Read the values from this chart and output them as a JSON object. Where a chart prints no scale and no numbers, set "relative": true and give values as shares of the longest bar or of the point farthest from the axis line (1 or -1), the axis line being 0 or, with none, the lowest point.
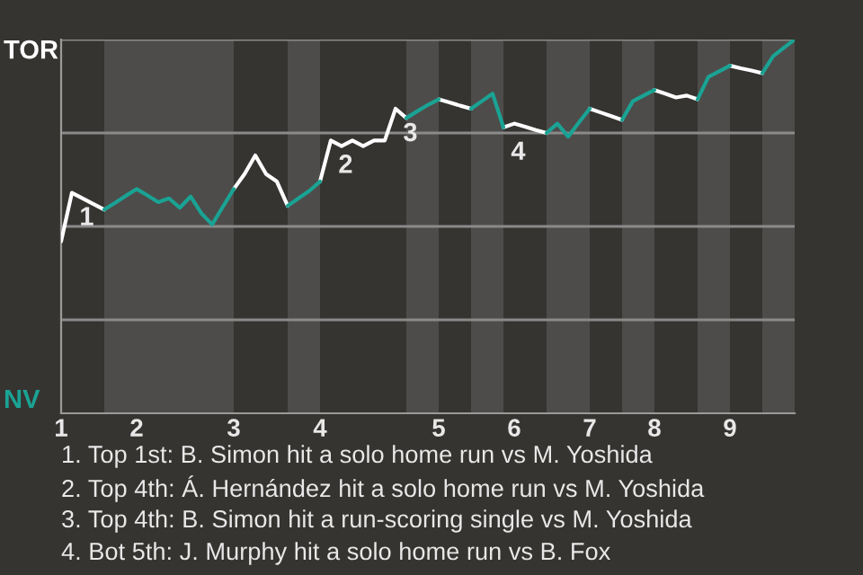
{
  "chart_data": {
    "type": "line",
    "relative": true,
    "categories": [
      "1",
      null,
      null,
      null,
      null,
      null,
      null,
      "2",
      null,
      null,
      null,
      null,
      null,
      null,
      null,
      null,
      "3",
      null,
      null,
      null,
      null,
      null,
      null,
      null,
      "4",
      null,
      null,
      null,
      null,
      null,
      null,
      null,
      null,
      null,
      null,
      "5",
      null,
      null,
      null,
      null,
      null,
      null,
      "6",
      null,
      null,
      null,
      null,
      null,
      null,
      "7",
      null,
      null,
      null,
      null,
      null,
      "8",
      null,
      null,
      null,
      null,
      null,
      null,
      "9",
      null,
      null,
      null,
      null,
      null,
      null
    ],
    "series": [
      {
        "color": "#ffffff",
        "values": [
          0.46,
          0.59,
          0.575,
          0.56,
          0.545,
          null,
          null,
          null,
          null,
          null,
          null,
          null,
          null,
          null,
          null,
          null,
          0.6,
          0.64,
          0.69,
          0.64,
          0.62,
          0.555,
          null,
          null,
          0.62,
          0.73,
          0.715,
          0.73,
          0.715,
          0.73,
          0.73,
          0.815,
          0.79,
          null,
          null,
          0.84,
          0.832,
          0.823,
          0.815,
          null,
          null,
          0.765,
          0.775,
          0.767,
          0.758,
          0.75,
          null,
          null,
          null,
          0.815,
          0.805,
          0.795,
          0.785,
          null,
          null,
          0.865,
          0.855,
          0.845,
          0.85,
          0.84,
          null,
          null,
          0.93,
          0.923,
          0.917,
          0.91,
          null,
          null,
          null
        ]
      },
      {
        "color": "#1aa394",
        "values": [
          null,
          null,
          null,
          null,
          0.545,
          0.563,
          0.582,
          0.6,
          0.583,
          0.565,
          0.575,
          0.55,
          0.58,
          0.535,
          0.505,
          0.553,
          0.6,
          null,
          null,
          null,
          null,
          0.555,
          0.575,
          0.595,
          0.62,
          null,
          null,
          null,
          null,
          null,
          null,
          null,
          0.79,
          0.808,
          0.825,
          0.84,
          null,
          null,
          0.815,
          0.835,
          0.855,
          0.765,
          null,
          null,
          null,
          0.75,
          0.775,
          0.74,
          0.778,
          0.815,
          null,
          null,
          0.785,
          0.835,
          0.85,
          0.865,
          null,
          null,
          null,
          0.84,
          0.9,
          0.915,
          0.93,
          null,
          null,
          0.91,
          0.955,
          0.978,
          1.0
        ]
      }
    ],
    "ref_lines": [
      {
        "axis": "y",
        "value": 0.25,
        "color": "#8a8a8a"
      },
      {
        "axis": "y",
        "value": 0.5,
        "color": "#8a8a8a"
      },
      {
        "axis": "y",
        "value": 0.75,
        "color": "#8a8a8a"
      },
      {
        "axis": "y",
        "value": 1.0,
        "color": "#8a8a8a"
      }
    ],
    "annotations": [
      "TOR",
      "NV",
      {
        "text": "1",
        "y": 0.59
      },
      {
        "text": "2",
        "y": 0.73
      },
      {
        "text": "3",
        "y": 0.815
      },
      {
        "text": "4",
        "y": 0.765
      },
      "1. Top 1st: B. Simon hit a solo home run vs M. Yoshida",
      "2. Top 4th: Á. Hernández hit a solo home run vs M. Yoshida",
      "3. Top 4th: B. Simon hit a run-scoring single vs M. Yoshida",
      "4. Bot 5th: J. Murphy hit a solo home run vs B. Fox"
    ]
  }
}
